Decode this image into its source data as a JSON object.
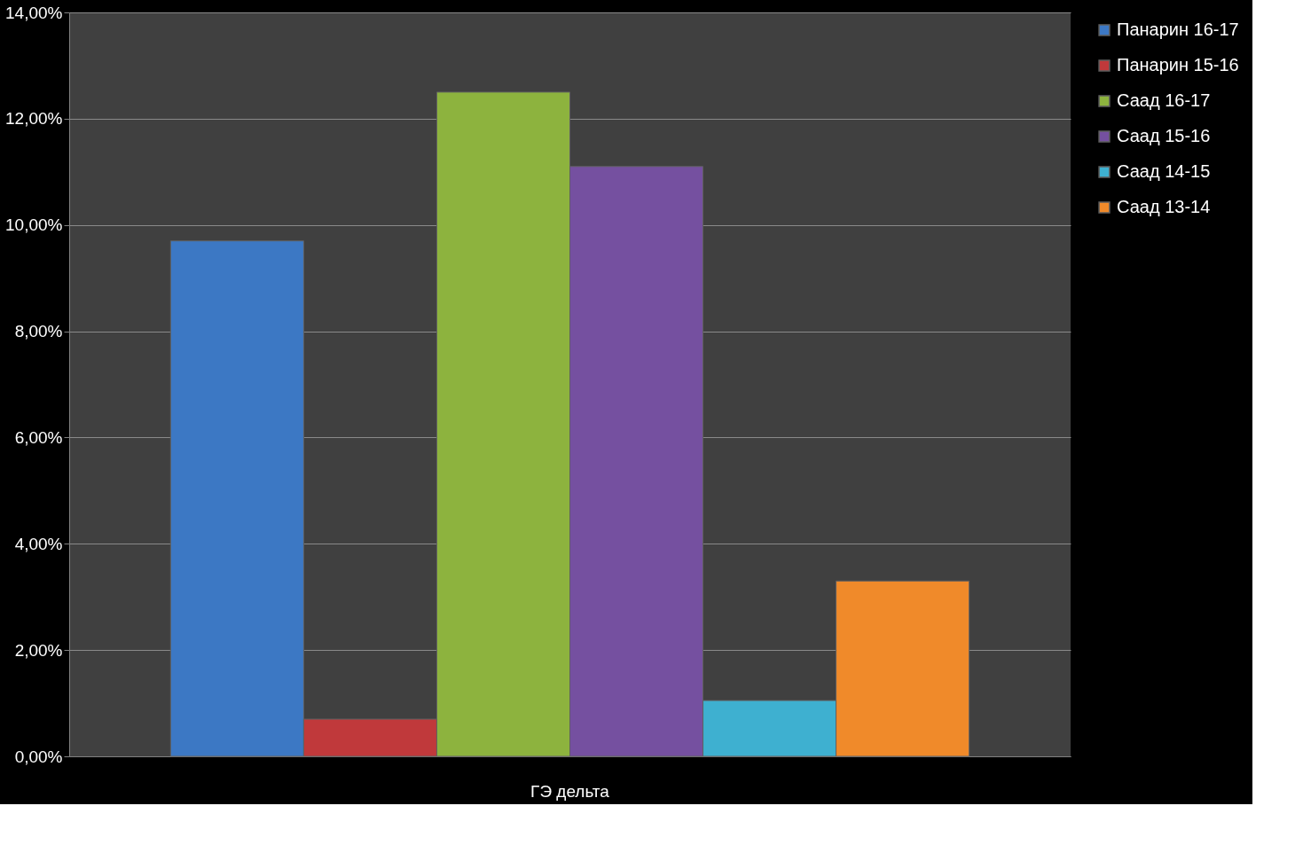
{
  "chart_data": {
    "type": "bar",
    "categories": [
      "ГЭ дельта"
    ],
    "series": [
      {
        "name": "Панарин 16-17",
        "color": "#3c78c4",
        "values": [
          9.7
        ]
      },
      {
        "name": "Панарин 15-16",
        "color": "#c0393b",
        "values": [
          0.7
        ]
      },
      {
        "name": "Саад 16-17",
        "color": "#8db33e",
        "values": [
          12.5
        ]
      },
      {
        "name": "Саад 15-16",
        "color": "#7550a0",
        "values": [
          11.1
        ]
      },
      {
        "name": "Саад 14-15",
        "color": "#3eb0d0",
        "values": [
          1.05
        ]
      },
      {
        "name": "Саад 13-14",
        "color": "#f08a2a",
        "values": [
          3.3
        ]
      }
    ],
    "ylim": [
      0,
      14
    ],
    "yticks": [
      {
        "value": 0,
        "label": "0,00%"
      },
      {
        "value": 2,
        "label": "2,00%"
      },
      {
        "value": 4,
        "label": "4,00%"
      },
      {
        "value": 6,
        "label": "6,00%"
      },
      {
        "value": 8,
        "label": "8,00%"
      },
      {
        "value": 10,
        "label": "10,00%"
      },
      {
        "value": 12,
        "label": "12,00%"
      },
      {
        "value": 14,
        "label": "14,00%"
      }
    ],
    "grid": "y",
    "legend": "right"
  }
}
